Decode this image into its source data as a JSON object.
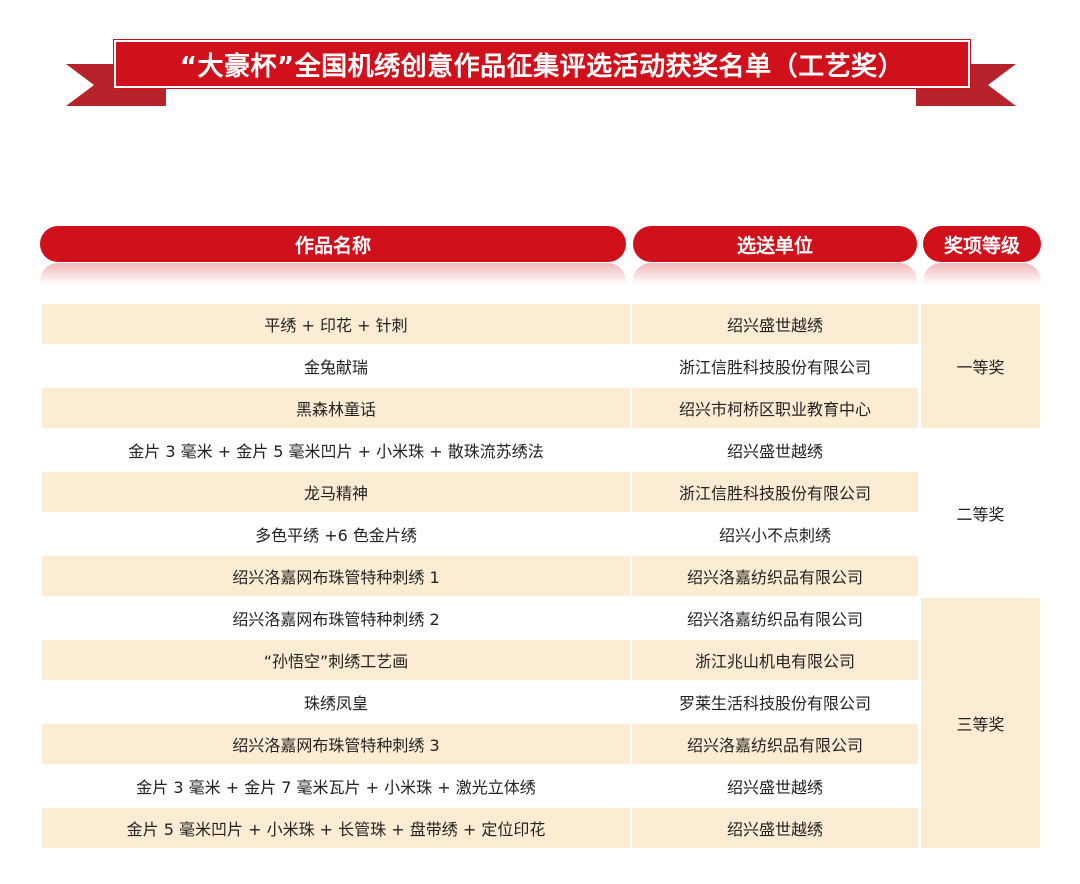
{
  "title": "“大豪杯”全国机绣创意作品征集评选活动获奖名单（工艺奖）",
  "headers": [
    "作品名称",
    "选送单位",
    "奖项等级"
  ],
  "colors": {
    "accent": "#d0111b",
    "row_fill": "#fdecd4"
  },
  "rows": [
    {
      "name": "平绣 + 印花 + 针刺",
      "unit": "绍兴盛世越绣"
    },
    {
      "name": "金兔献瑞",
      "unit": "浙江信胜科技股份有限公司"
    },
    {
      "name": "黑森林童话",
      "unit": "绍兴市柯桥区职业教育中心"
    },
    {
      "name": "金片 3 毫米 + 金片 5 毫米凹片 + 小米珠 + 散珠流苏绣法",
      "unit": "绍兴盛世越绣"
    },
    {
      "name": "龙马精神",
      "unit": "浙江信胜科技股份有限公司"
    },
    {
      "name": "多色平绣 +6 色金片绣",
      "unit": "绍兴小不点刺绣"
    },
    {
      "name": "绍兴洛嘉网布珠管特种刺绣 1",
      "unit": "绍兴洛嘉纺织品有限公司"
    },
    {
      "name": "绍兴洛嘉网布珠管特种刺绣 2",
      "unit": "绍兴洛嘉纺织品有限公司"
    },
    {
      "name": "“孙悟空”刺绣工艺画",
      "unit": "浙江兆山机电有限公司"
    },
    {
      "name": "珠绣凤皇",
      "unit": "罗莱生活科技股份有限公司"
    },
    {
      "name": "绍兴洛嘉网布珠管特种刺绣 3",
      "unit": "绍兴洛嘉纺织品有限公司"
    },
    {
      "name": "金片 3 毫米 + 金片 7 毫米瓦片 + 小米珠 + 激光立体绣",
      "unit": "绍兴盛世越绣"
    },
    {
      "name": "金片 5 毫米凹片 + 小米珠 + 长管珠 + 盘带绣 + 定位印花",
      "unit": "绍兴盛世越绣"
    }
  ],
  "awards": [
    {
      "label": "一等奖",
      "count": 3
    },
    {
      "label": "二等奖",
      "count": 4
    },
    {
      "label": "三等奖",
      "count": 6
    }
  ]
}
